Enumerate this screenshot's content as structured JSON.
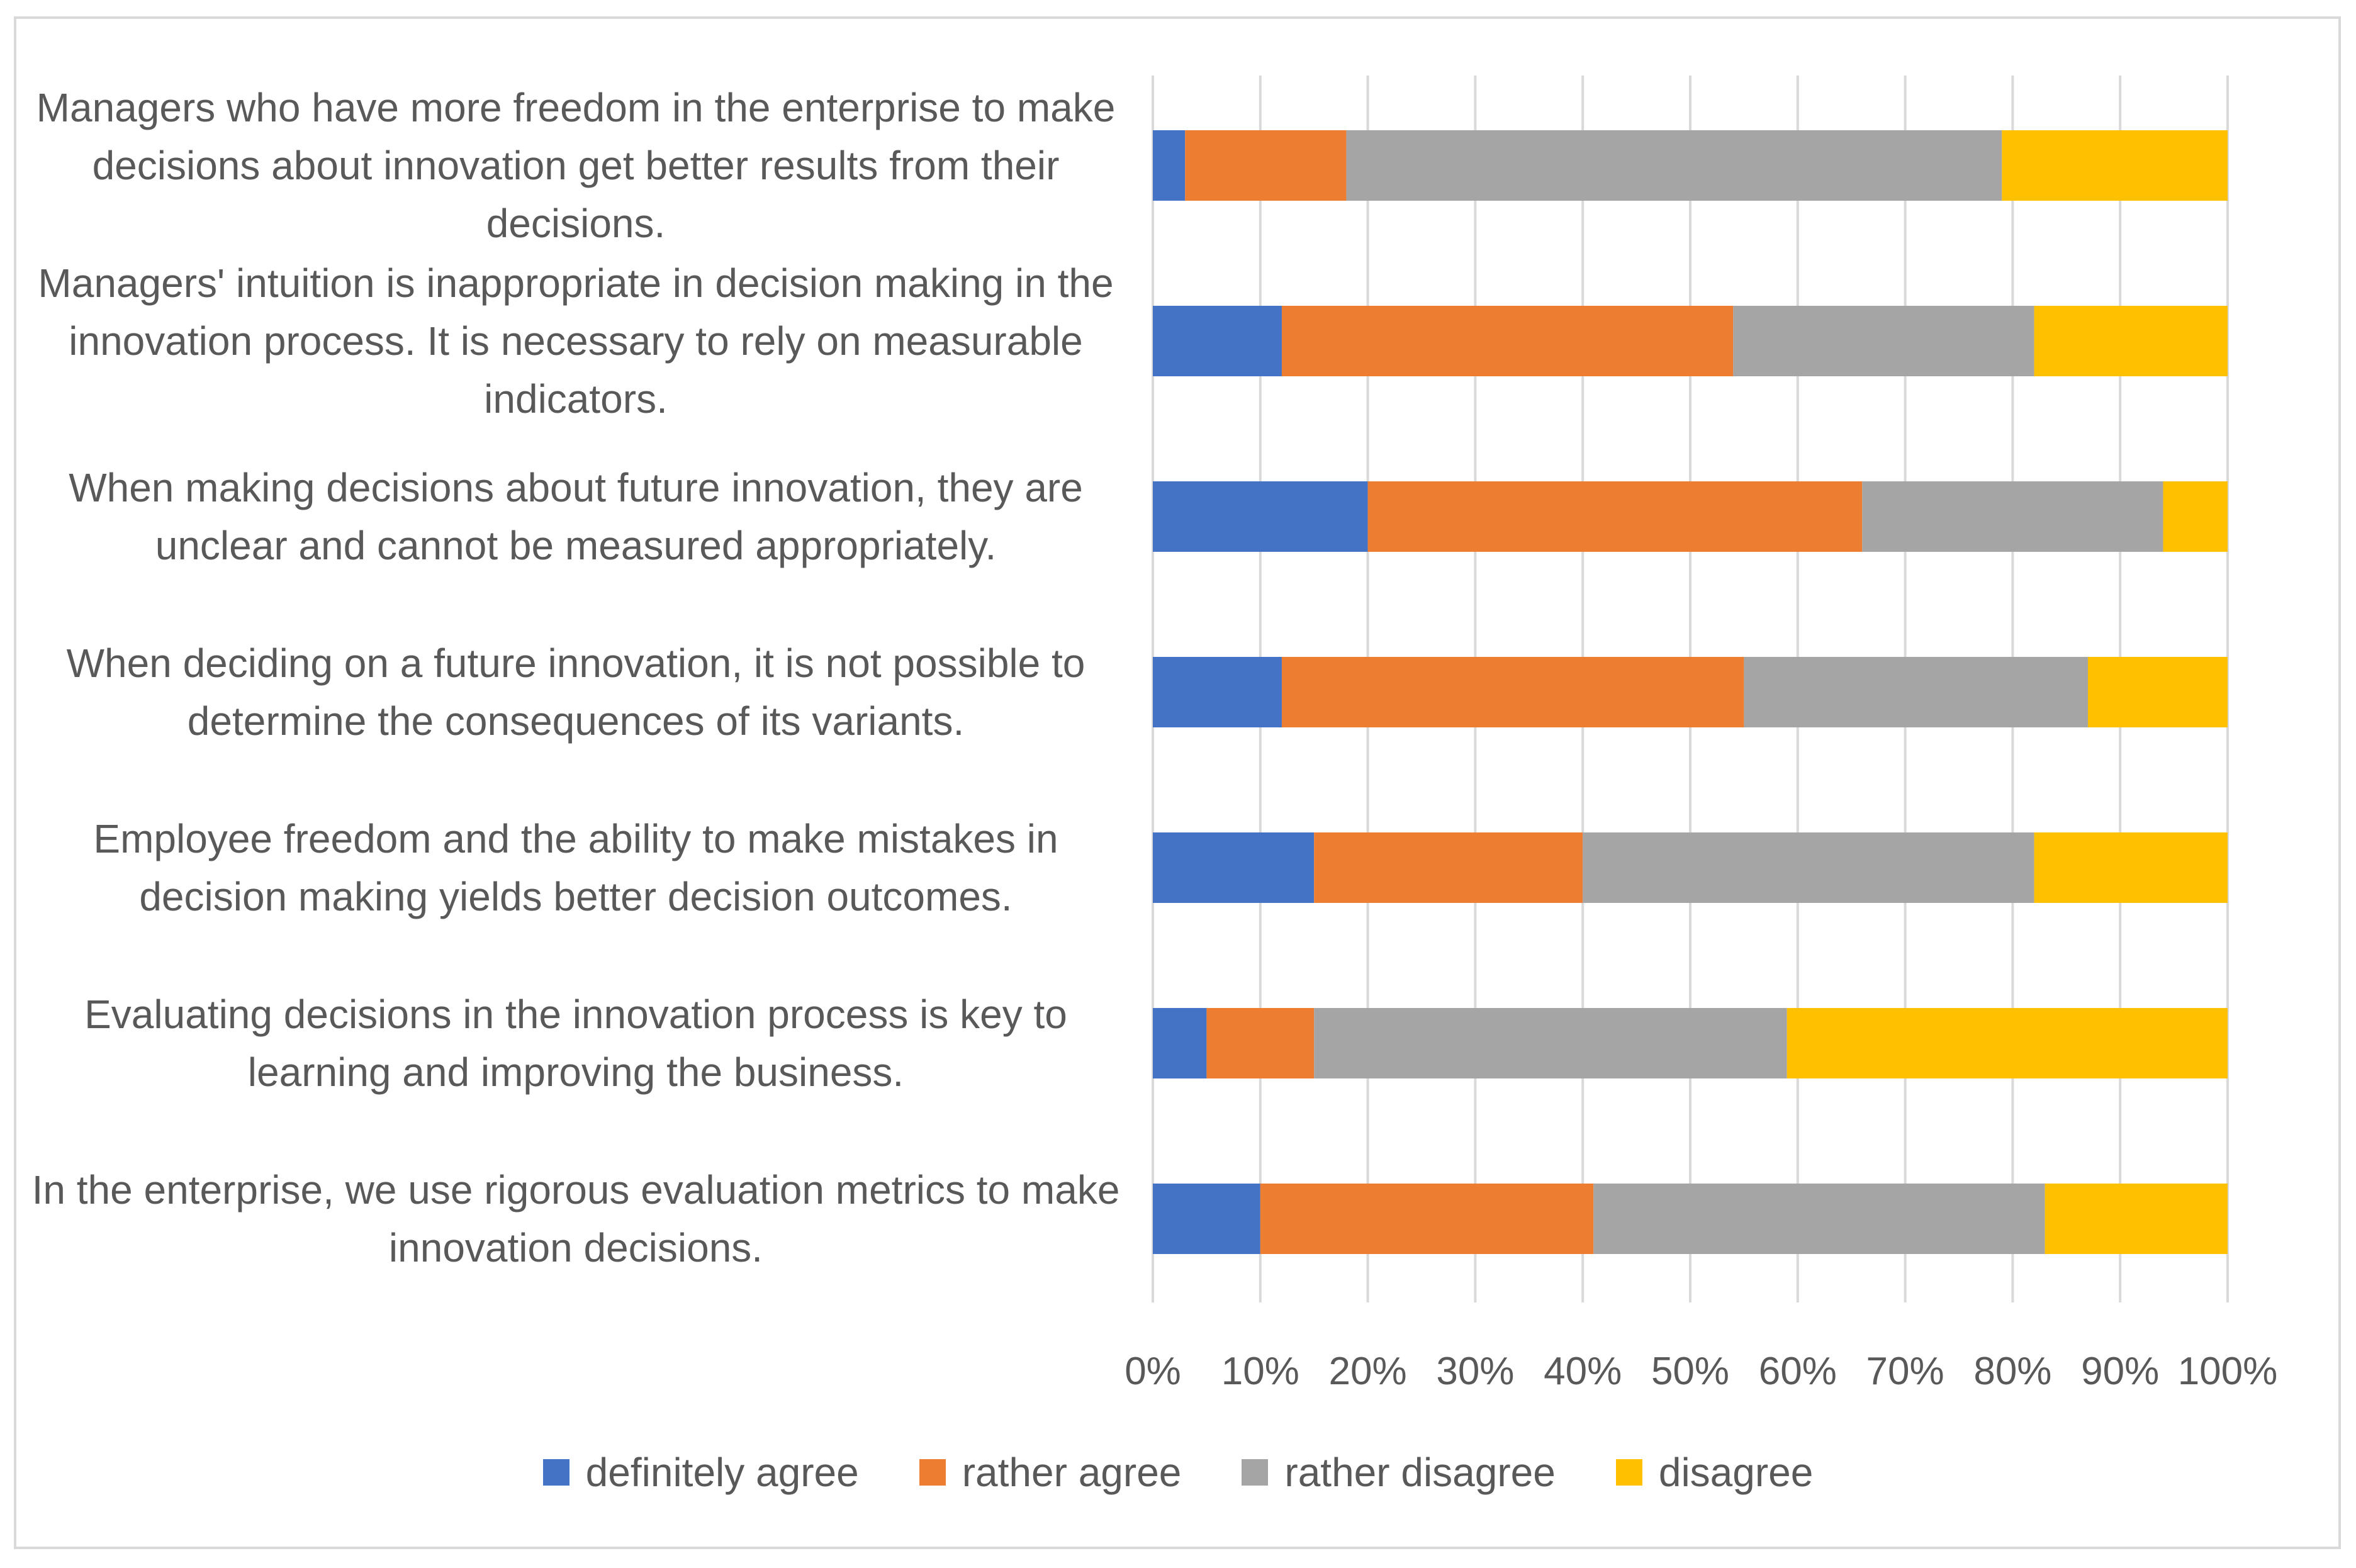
{
  "chart_data": {
    "type": "bar",
    "orientation": "horizontal",
    "stacked": "percent",
    "categories": [
      "Managers who have more freedom in the enterprise to make decisions about innovation get better results from their decisions.",
      "Managers' intuition is inappropriate in decision making in the innovation process. It is necessary to rely on measurable indicators.",
      "When making decisions about future innovation, they are unclear and cannot be measured appropriately.",
      "When deciding on a future innovation, it is not possible to determine the consequences of its variants.",
      "Employee freedom and the ability to make mistakes in decision making yields better decision outcomes.",
      "Evaluating decisions in the innovation process is key to learning and improving the business.",
      "In the enterprise, we use rigorous evaluation metrics to make innovation decisions."
    ],
    "series": [
      {
        "name": "definitely agree",
        "color": "#4472c4",
        "values": [
          3,
          12,
          20,
          12,
          15,
          5,
          10
        ]
      },
      {
        "name": "rather agree",
        "color": "#ed7d31",
        "values": [
          15,
          42,
          46,
          43,
          25,
          10,
          31
        ]
      },
      {
        "name": "rather disagree",
        "color": "#a5a5a5",
        "values": [
          61,
          28,
          28,
          32,
          42,
          44,
          42
        ]
      },
      {
        "name": "disagree",
        "color": "#ffc000",
        "values": [
          21,
          18,
          6,
          13,
          18,
          41,
          17
        ]
      }
    ],
    "xlim": [
      0,
      100
    ],
    "x_ticks": [
      "0%",
      "10%",
      "20%",
      "30%",
      "40%",
      "50%",
      "60%",
      "70%",
      "80%",
      "90%",
      "100%"
    ],
    "grid": true,
    "legend_position": "bottom",
    "title": "",
    "xlabel": "",
    "ylabel": ""
  }
}
